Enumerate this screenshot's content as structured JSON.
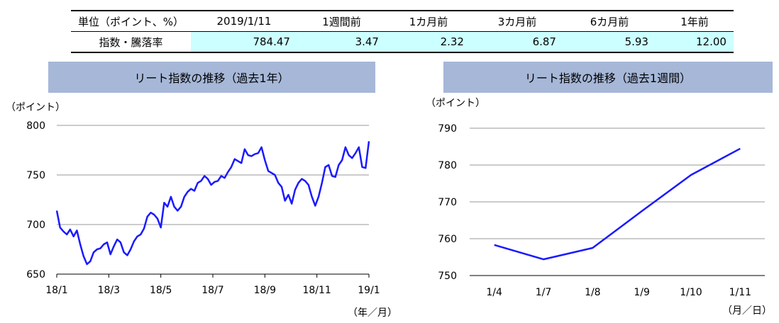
{
  "summary_table": {
    "header": [
      "単位（ポイント、%）",
      "2019/1/11",
      "1週間前",
      "1カ月前",
      "3カ月前",
      "6カ月前",
      "1年前"
    ],
    "row_label": "指数・騰落率",
    "values": [
      "784.47",
      "3.47",
      "2.32",
      "6.87",
      "5.93",
      "12.00"
    ]
  },
  "colors": {
    "line": "#1a1aff",
    "banner": "#a6b7d8",
    "highlight": "#ccffff",
    "grid": "#999999"
  },
  "chart_data": [
    {
      "type": "line",
      "title": "リート指数の推移（過去1年）",
      "ylabel": "（ポイント）",
      "xlabel": "（年／月）",
      "ylim": [
        650,
        800
      ],
      "yticks": [
        650,
        700,
        750,
        800
      ],
      "xticks": [
        "18/1",
        "18/3",
        "18/5",
        "18/7",
        "18/9",
        "18/11",
        "19/1"
      ],
      "grid": true,
      "series": [
        {
          "x": [
            "18/1/4",
            "18/1/8",
            "18/1/12",
            "18/1/16",
            "18/1/20",
            "18/1/24",
            "18/1/28",
            "18/2/1",
            "18/2/5",
            "18/2/9",
            "18/2/13",
            "18/2/17",
            "18/2/21",
            "18/2/25",
            "18/3/1",
            "18/3/5",
            "18/3/9",
            "18/3/13",
            "18/3/17",
            "18/3/21",
            "18/3/25",
            "18/3/29",
            "18/4/2",
            "18/4/6",
            "18/4/10",
            "18/4/14",
            "18/4/18",
            "18/4/22",
            "18/4/26",
            "18/4/30",
            "18/5/4",
            "18/5/8",
            "18/5/12",
            "18/5/16",
            "18/5/20",
            "18/5/24",
            "18/5/28",
            "18/6/1",
            "18/6/5",
            "18/6/9",
            "18/6/13",
            "18/6/17",
            "18/6/21",
            "18/6/25",
            "18/6/29",
            "18/7/3",
            "18/7/7",
            "18/7/11",
            "18/7/15",
            "18/7/19",
            "18/7/23",
            "18/7/27",
            "18/7/31",
            "18/8/4",
            "18/8/8",
            "18/8/12",
            "18/8/16",
            "18/8/20",
            "18/8/24",
            "18/8/28",
            "18/9/1",
            "18/9/5",
            "18/9/9",
            "18/9/13",
            "18/9/17",
            "18/9/21",
            "18/9/25",
            "18/9/29",
            "18/10/3",
            "18/10/7",
            "18/10/11",
            "18/10/15",
            "18/10/19",
            "18/10/23",
            "18/10/27",
            "18/10/31",
            "18/11/4",
            "18/11/8",
            "18/11/12",
            "18/11/16",
            "18/11/20",
            "18/11/24",
            "18/11/28",
            "18/12/2",
            "18/12/6",
            "18/12/10",
            "18/12/14",
            "18/12/18",
            "18/12/22",
            "18/12/26",
            "18/12/30",
            "19/1/3",
            "19/1/7",
            "19/1/11"
          ],
          "values": [
            714,
            697,
            693,
            690,
            695,
            688,
            694,
            680,
            668,
            660,
            663,
            672,
            675,
            676,
            680,
            682,
            670,
            678,
            685,
            682,
            672,
            669,
            675,
            683,
            688,
            690,
            696,
            708,
            712,
            710,
            706,
            697,
            722,
            718,
            728,
            718,
            714,
            718,
            728,
            733,
            736,
            734,
            742,
            744,
            749,
            746,
            740,
            743,
            744,
            749,
            747,
            753,
            758,
            766,
            764,
            762,
            776,
            770,
            769,
            771,
            772,
            778,
            765,
            754,
            752,
            750,
            742,
            738,
            724,
            730,
            721,
            735,
            742,
            746,
            744,
            740,
            728,
            719,
            728,
            742,
            758,
            760,
            749,
            748,
            760,
            765,
            778,
            770,
            767,
            772,
            778,
            758,
            757,
            784
          ]
        }
      ]
    },
    {
      "type": "line",
      "title": "リート指数の推移（過去1週間）",
      "ylabel": "（ポイント）",
      "xlabel": "（月／日）",
      "ylim": [
        750,
        790
      ],
      "yticks": [
        750,
        760,
        770,
        780,
        790
      ],
      "categories": [
        "1/4",
        "1/7",
        "1/8",
        "1/9",
        "1/10",
        "1/11"
      ],
      "grid": true,
      "series": [
        {
          "values": [
            758.3,
            754.4,
            757.5,
            767.5,
            777.3,
            784.47
          ]
        }
      ]
    }
  ]
}
